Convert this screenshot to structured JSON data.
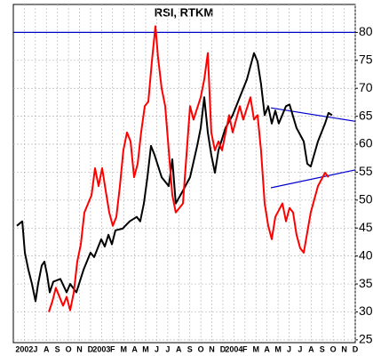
{
  "chart_data": {
    "type": "line",
    "title": "RSI, RTKM",
    "categories": [
      "2002",
      "J",
      "A",
      "S",
      "O",
      "N",
      "D",
      "2003",
      "F",
      "M",
      "A",
      "M",
      "J",
      "J",
      "A",
      "S",
      "O",
      "N",
      "D",
      "2004",
      "F",
      "M",
      "A",
      "M",
      "J",
      "J",
      "A",
      "S",
      "O",
      "N",
      "D"
    ],
    "xlim": [
      -1,
      30
    ],
    "ylim": [
      24.5,
      85
    ],
    "yticks": [
      25,
      30,
      35,
      40,
      45,
      50,
      55,
      60,
      65,
      70,
      75,
      80
    ],
    "grid": true,
    "series": [
      {
        "color": "#000000",
        "x": [
          -0.68,
          -0.19,
          0.05,
          0.37,
          0.69,
          1.01,
          1.25,
          1.58,
          1.82,
          2.06,
          2.3,
          2.62,
          3.27,
          3.83,
          4.15,
          4.72,
          5.36,
          6.0,
          6.33,
          6.97,
          7.29,
          7.62,
          7.94,
          8.26,
          8.9,
          9.55,
          10.19,
          10.51,
          10.84,
          11.16,
          11.48,
          11.8,
          12.45,
          13.09,
          13.41,
          13.73,
          14.38,
          15.02,
          15.67,
          15.99,
          16.31,
          16.63,
          16.95,
          17.28,
          17.6,
          18.24,
          18.89,
          19.53,
          20.18,
          20.82,
          21.14,
          21.46,
          21.79,
          22.11,
          22.43,
          22.75,
          23.07,
          23.72,
          24.04,
          24.68,
          25.33,
          25.65,
          25.97,
          26.62,
          27.26,
          27.58,
          27.9
        ],
        "values": [
          45.4,
          46.2,
          40.6,
          37.5,
          35,
          31.9,
          35,
          38.3,
          39,
          36.7,
          33.5,
          35.4,
          35.9,
          33.5,
          35,
          33.5,
          37.5,
          40.6,
          39.8,
          43,
          41.7,
          43.8,
          42.1,
          44.6,
          44.9,
          46.2,
          47,
          46.2,
          49.4,
          54.1,
          59.7,
          58.1,
          54.1,
          52.5,
          57.3,
          49.4,
          51.7,
          54.1,
          59.7,
          62.9,
          68.4,
          62.1,
          58.1,
          54.9,
          58.9,
          62.9,
          65.2,
          68.4,
          71.6,
          76.3,
          74.8,
          70.8,
          65.2,
          66.8,
          63.7,
          66,
          63.7,
          66.8,
          67.1,
          62.9,
          60.5,
          56.5,
          56,
          60.5,
          63.7,
          65.6,
          65.2
        ]
      },
      {
        "color": "#ff0000",
        "x": [
          2.22,
          2.54,
          2.86,
          3.51,
          3.83,
          4.15,
          4.48,
          4.8,
          5.12,
          5.44,
          6.09,
          6.41,
          6.73,
          7.05,
          7.37,
          7.7,
          8.02,
          8.34,
          8.66,
          8.98,
          9.31,
          9.63,
          9.95,
          10.27,
          10.59,
          10.92,
          11.24,
          11.56,
          11.88,
          12.12,
          12.45,
          12.77,
          13.09,
          13.41,
          13.73,
          14.38,
          14.7,
          15.02,
          15.34,
          15.99,
          16.31,
          16.63,
          16.95,
          17.28,
          17.6,
          17.92,
          18.57,
          18.89,
          19.53,
          19.85,
          20.5,
          20.82,
          21.14,
          21.46,
          21.79,
          22.11,
          22.43,
          22.75,
          23.4,
          23.72,
          24.04,
          24.36,
          24.68,
          25.01,
          25.33,
          25.97,
          26.62,
          27.26,
          27.58
        ],
        "values": [
          30,
          31.9,
          34.3,
          31.1,
          32.7,
          30.3,
          33.5,
          39,
          42.1,
          47.8,
          50.9,
          55.7,
          52.5,
          55.7,
          51.7,
          47.8,
          45.4,
          47,
          52.5,
          58.9,
          62.1,
          60.5,
          54.1,
          56.5,
          62.1,
          66.8,
          67.6,
          74.8,
          81.1,
          75.6,
          70,
          66.8,
          58.9,
          50.9,
          47.8,
          49.4,
          58.1,
          66.8,
          64.4,
          68.4,
          71.6,
          76.3,
          62.1,
          58.9,
          60.5,
          58.9,
          65.2,
          62.1,
          66.8,
          64.4,
          68.4,
          64.4,
          65.2,
          58.9,
          49.4,
          45.4,
          43,
          47,
          49.4,
          46.2,
          48.6,
          47.8,
          43.8,
          41.4,
          40.6,
          47.8,
          52.5,
          54.9,
          54.1
        ]
      }
    ],
    "hline": {
      "value": 80,
      "color": "#0000cc"
    },
    "trendlines": [
      {
        "color": "#0000cc",
        "x": [
          22.35,
          30
        ],
        "values": [
          66.5,
          64.1
        ]
      },
      {
        "color": "#0000cc",
        "x": [
          22.35,
          30
        ],
        "values": [
          52.2,
          55.4
        ]
      }
    ]
  }
}
